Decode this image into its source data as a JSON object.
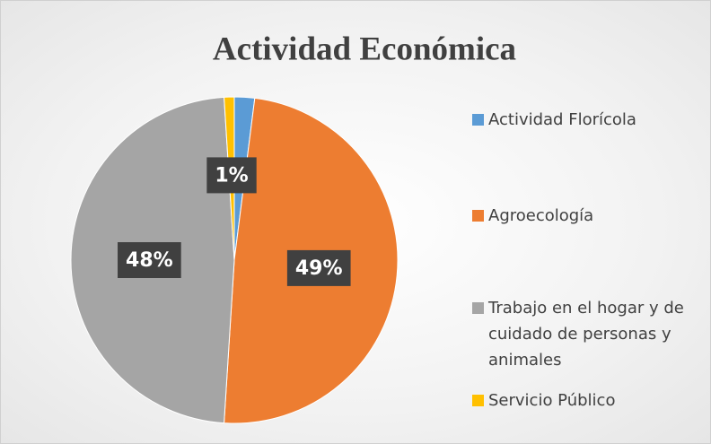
{
  "chart_data": {
    "type": "pie",
    "title": "Actividad Económica",
    "categories": [
      "Actividad Florícola",
      "Agroecología",
      "Trabajo en el hogar y de cuidado de personas y animales",
      "Servicio Público"
    ],
    "values": [
      2,
      49,
      48,
      1
    ],
    "value_labels": [
      null,
      "49%",
      "48%",
      "1%"
    ],
    "colors": [
      "#5b9bd5",
      "#ed7d31",
      "#a5a5a5",
      "#ffc000"
    ],
    "legend": "right"
  }
}
